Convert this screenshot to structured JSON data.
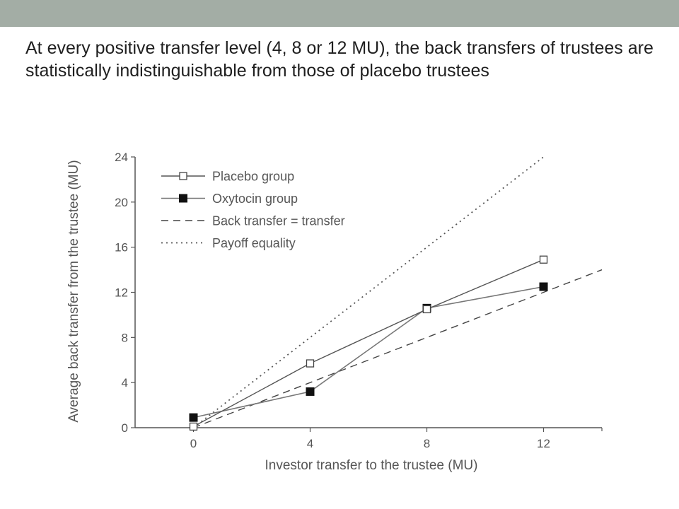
{
  "slide": {
    "body_text": "At every positive transfer level (4, 8 or 12 MU), the back transfers of trustees are statistically indistinguishable from those of placebo trustees"
  },
  "colors": {
    "top_bar": "#a3ada5",
    "axis": "#555555",
    "placebo_line": "#555555",
    "oxytocin_line": "#777777"
  },
  "chart_data": {
    "type": "line",
    "title": "",
    "xlabel": "Investor transfer to the trustee (MU)",
    "ylabel": "Average back transfer from the trustee (MU)",
    "xlim": [
      -2,
      14
    ],
    "ylim": [
      0,
      24
    ],
    "x_ticks": [
      "0",
      "4",
      "8",
      "12"
    ],
    "y_ticks": [
      "0",
      "4",
      "8",
      "12",
      "16",
      "20",
      "24"
    ],
    "grid": false,
    "legend_position": "top-left",
    "series": [
      {
        "name": "Placebo group",
        "style": "solid-open-square",
        "x": [
          0,
          4,
          8,
          12
        ],
        "y": [
          0.1,
          5.7,
          10.5,
          14.9
        ]
      },
      {
        "name": "Oxytocin group",
        "style": "solid-filled-square",
        "x": [
          0,
          4,
          8,
          12
        ],
        "y": [
          0.9,
          3.2,
          10.6,
          12.5
        ]
      },
      {
        "name": "Back transfer = transfer",
        "style": "dashed",
        "x": [
          0,
          14
        ],
        "y": [
          0,
          14
        ]
      },
      {
        "name": "Payoff equality",
        "style": "dotted",
        "x": [
          0,
          12
        ],
        "y": [
          0,
          24
        ]
      }
    ]
  }
}
